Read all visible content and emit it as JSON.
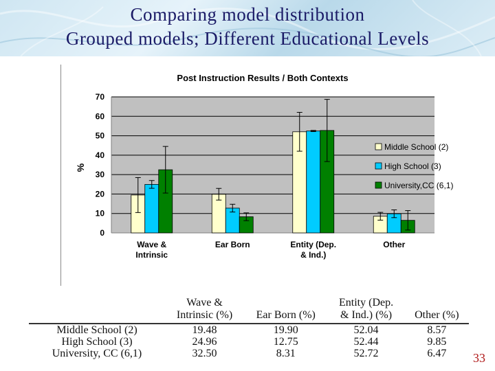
{
  "slide": {
    "title_line1": "Comparing model distribution",
    "title_line2": "Grouped models; Different Educational Levels",
    "number": "33"
  },
  "colors": {
    "title": "#1a1a66",
    "plot_background": "#c0c0c0",
    "series": [
      "#ffffcc",
      "#00ccff",
      "#008000"
    ],
    "slide_number": "#b01818"
  },
  "chart_data": {
    "type": "bar",
    "title": "Post Instruction Results / Both Contexts",
    "ylabel": "%",
    "xlabel": "",
    "ylim": [
      0,
      70
    ],
    "yticks": [
      0,
      10,
      20,
      30,
      40,
      50,
      60,
      70
    ],
    "grid": true,
    "legend_position": "right",
    "categories": [
      [
        "Wave &",
        "Intrinsic"
      ],
      [
        "Ear Born"
      ],
      [
        "Entity (Dep.",
        "& Ind.)"
      ],
      [
        "Other"
      ]
    ],
    "series": [
      {
        "name": "Middle School (2)",
        "values": [
          19.48,
          19.9,
          52.04,
          8.57
        ],
        "errors": [
          9,
          3,
          10,
          2
        ]
      },
      {
        "name": "High School (3)",
        "values": [
          24.96,
          12.75,
          52.44,
          9.85
        ],
        "errors": [
          2,
          2,
          0.3,
          2
        ]
      },
      {
        "name": "University,CC (6,1)",
        "values": [
          32.5,
          8.31,
          52.72,
          6.47
        ],
        "errors": [
          12,
          2,
          16,
          5
        ]
      }
    ]
  },
  "table": {
    "headers": [
      {
        "line1": "",
        "line2": ""
      },
      {
        "line1": "Wave &",
        "line2": "Intrinsic (%)"
      },
      {
        "line1": "",
        "line2": "Ear Born (%)"
      },
      {
        "line1": "Entity (Dep.",
        "line2": "& Ind.) (%)"
      },
      {
        "line1": "",
        "line2": "Other (%)"
      }
    ],
    "rows": [
      [
        "Middle School (2)",
        "19.48",
        "19.90",
        "52.04",
        "8.57"
      ],
      [
        "High School (3)",
        "24.96",
        "12.75",
        "52.44",
        "9.85"
      ],
      [
        "University, CC (6,1)",
        "32.50",
        "8.31",
        "52.72",
        "6.47"
      ]
    ]
  }
}
